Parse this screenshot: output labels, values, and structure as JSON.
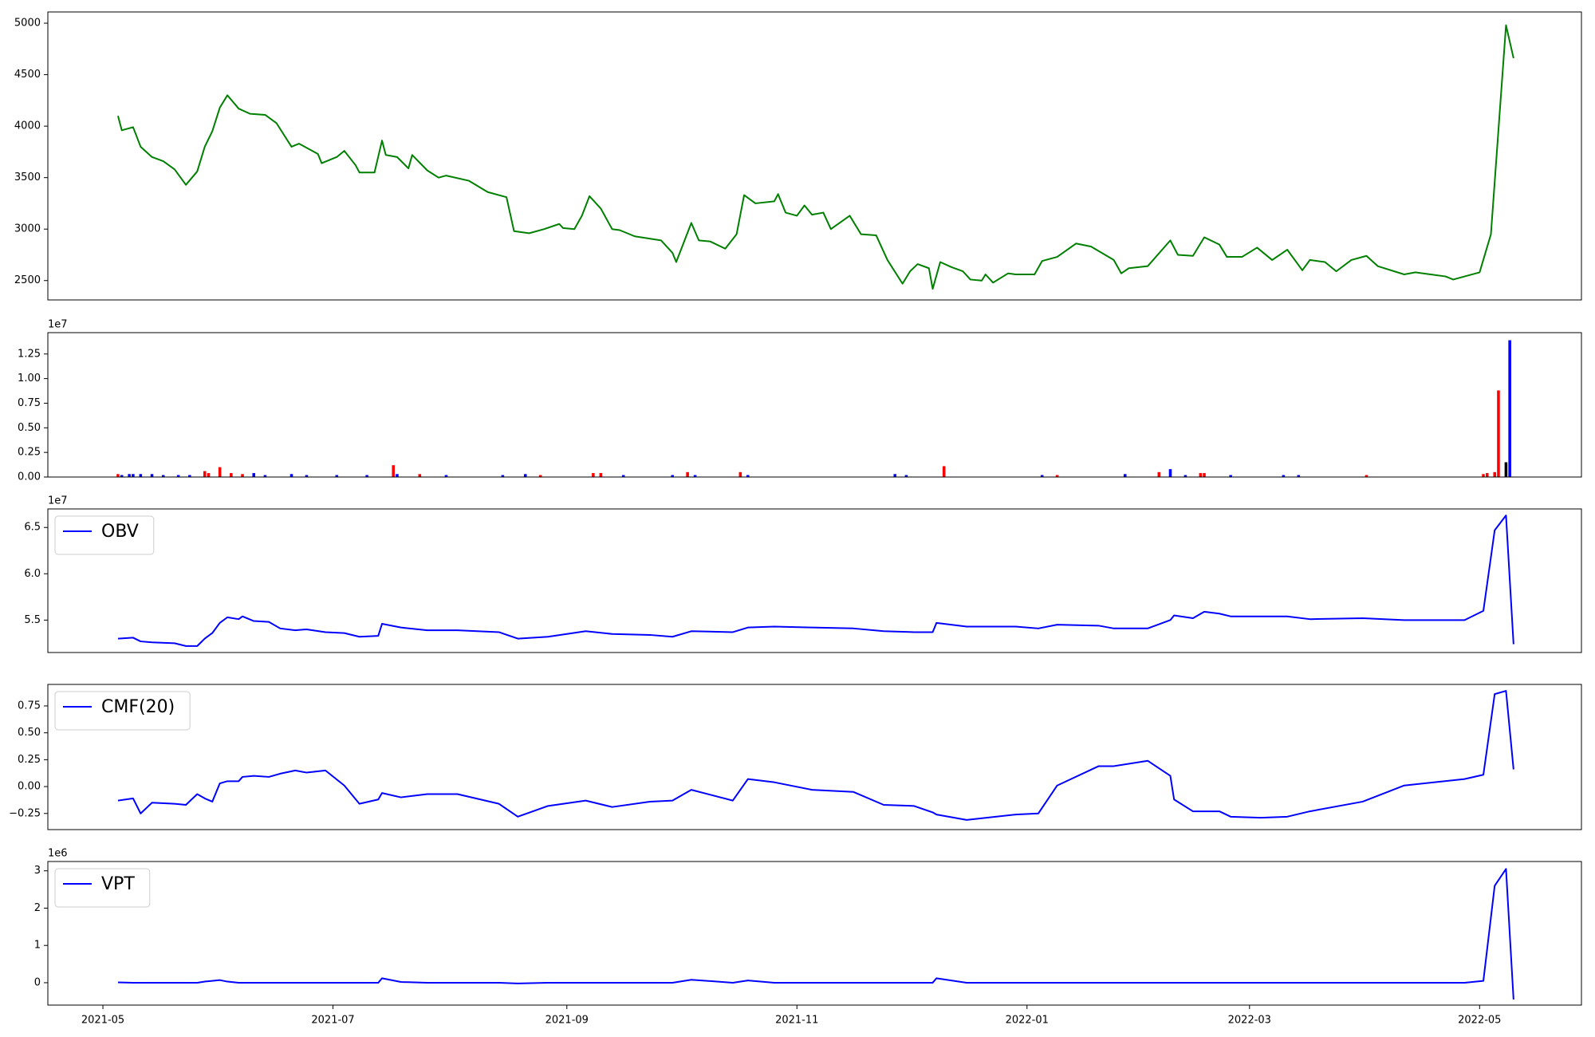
{
  "chart_data": [
    {
      "type": "line",
      "color": "#008000",
      "x": [
        4,
        5,
        8,
        10,
        13,
        16,
        19,
        22,
        25,
        27,
        29,
        31,
        33,
        36,
        39,
        43,
        46,
        50,
        52,
        57,
        58,
        62,
        64,
        67,
        68,
        72,
        74,
        75,
        78,
        81,
        82,
        86,
        89,
        91,
        97,
        102,
        107,
        109,
        113,
        117,
        121,
        122,
        125,
        127,
        129,
        132,
        135,
        137,
        141,
        148,
        151,
        152,
        156,
        158,
        161,
        165,
        168,
        170,
        173,
        178,
        179,
        181,
        184,
        186,
        188,
        191,
        193,
        198,
        201,
        205,
        208,
        212,
        214,
        216,
        219,
        220,
        222,
        225,
        228,
        230,
        233,
        234,
        236,
        240,
        242,
        247,
        249,
        253,
        258,
        262,
        268,
        270,
        272,
        277,
        283,
        285,
        289,
        292,
        296,
        298,
        302,
        306,
        310,
        314,
        318,
        320,
        324,
        327,
        331,
        335,
        338,
        345,
        348,
        352,
        356,
        358,
        361,
        365,
        368,
        372,
        374
      ],
      "values": [
        4100,
        3960,
        3990,
        3800,
        3700,
        3660,
        3580,
        3430,
        3560,
        3800,
        3950,
        4180,
        4300,
        4170,
        4120,
        4110,
        4030,
        3800,
        3830,
        3730,
        3640,
        3700,
        3760,
        3620,
        3550,
        3550,
        3860,
        3720,
        3700,
        3590,
        3720,
        3570,
        3500,
        3520,
        3470,
        3360,
        3310,
        2980,
        2960,
        3000,
        3050,
        3010,
        3000,
        3130,
        3320,
        3200,
        3000,
        2990,
        2930,
        2890,
        2770,
        2680,
        3060,
        2890,
        2880,
        2810,
        2950,
        3330,
        3250,
        3270,
        3340,
        3160,
        3130,
        3230,
        3140,
        3160,
        3000,
        3130,
        2950,
        2940,
        2700,
        2470,
        2590,
        2660,
        2620,
        2420,
        2680,
        2630,
        2590,
        2510,
        2500,
        2560,
        2480,
        2570,
        2560,
        2560,
        2690,
        2730,
        2860,
        2830,
        2700,
        2570,
        2620,
        2640,
        2890,
        2750,
        2740,
        2920,
        2850,
        2730,
        2730,
        2820,
        2700,
        2800,
        2600,
        2700,
        2680,
        2590,
        2700,
        2740,
        2640,
        2560,
        2580,
        2560,
        2540,
        2510,
        2540,
        2580,
        2950,
        4980,
        4660
      ],
      "xlim": [
        -14.6,
        392
      ],
      "ylim": [
        2312,
        5109
      ],
      "yticks": [
        2500,
        3000,
        3500,
        4000,
        4500,
        5000
      ]
    },
    {
      "type": "bar",
      "y_offset_label": "1e7",
      "x": [
        4,
        5,
        7,
        8,
        10,
        13,
        16,
        20,
        23,
        27,
        28,
        31,
        34,
        37,
        40,
        43,
        50,
        54,
        62,
        70,
        77,
        78,
        84,
        91,
        106,
        112,
        116,
        130,
        132,
        138,
        151,
        155,
        157,
        169,
        171,
        210,
        213,
        223,
        249,
        253,
        271,
        280,
        283,
        287,
        291,
        292,
        299,
        313,
        317,
        335,
        366,
        367,
        369,
        370,
        372,
        373
      ],
      "values": [
        0.03,
        0.02,
        0.03,
        0.03,
        0.03,
        0.03,
        0.02,
        0.02,
        0.02,
        0.06,
        0.04,
        0.1,
        0.04,
        0.03,
        0.04,
        0.02,
        0.03,
        0.02,
        0.02,
        0.02,
        0.12,
        0.03,
        0.03,
        0.02,
        0.02,
        0.03,
        0.02,
        0.04,
        0.04,
        0.02,
        0.02,
        0.05,
        0.02,
        0.05,
        0.02,
        0.03,
        0.02,
        0.11,
        0.02,
        0.02,
        0.03,
        0.05,
        0.08,
        0.02,
        0.04,
        0.04,
        0.02,
        0.02,
        0.02,
        0.02,
        0.03,
        0.04,
        0.05,
        0.88,
        0.15,
        1.39
      ],
      "colors": [
        "#ff0000",
        "#0000ff",
        "#0000ff",
        "#0000ff",
        "#0000ff",
        "#0000ff",
        "#0000ff",
        "#0000ff",
        "#0000ff",
        "#ff0000",
        "#ff0000",
        "#ff0000",
        "#ff0000",
        "#ff0000",
        "#0000ff",
        "#0000ff",
        "#0000ff",
        "#0000ff",
        "#0000ff",
        "#0000ff",
        "#ff0000",
        "#0000ff",
        "#ff0000",
        "#0000ff",
        "#0000ff",
        "#0000ff",
        "#ff0000",
        "#ff0000",
        "#ff0000",
        "#0000ff",
        "#0000ff",
        "#ff0000",
        "#0000ff",
        "#ff0000",
        "#0000ff",
        "#0000ff",
        "#0000ff",
        "#ff0000",
        "#0000ff",
        "#ff0000",
        "#0000ff",
        "#ff0000",
        "#0000ff",
        "#0000ff",
        "#ff0000",
        "#ff0000",
        "#0000ff",
        "#0000ff",
        "#0000ff",
        "#ff0000",
        "#ff0000",
        "#ff0000",
        "#ff0000",
        "#ff0000",
        "#000000",
        "#0000ff"
      ],
      "xlim": [
        -14.6,
        392
      ],
      "ylim": [
        0,
        1.467
      ],
      "yticks": [
        {
          "value": 0,
          "label": "0.00"
        },
        0.25,
        {
          "value": 0.5,
          "label": "0.50"
        },
        0.75,
        {
          "value": 1,
          "label": "1.00"
        },
        1.25
      ]
    },
    {
      "type": "line",
      "y_offset_label": "1e7",
      "legend": "upper left",
      "x": [
        4,
        8,
        10,
        13,
        19,
        22,
        25,
        27,
        29,
        31,
        33,
        36,
        37,
        40,
        44,
        47,
        51,
        54,
        59,
        64,
        68,
        73,
        74,
        79,
        86,
        94,
        105,
        110,
        118,
        128,
        135,
        145,
        151,
        156,
        167,
        171,
        178,
        188,
        199,
        207,
        215,
        220,
        221,
        229,
        242,
        248,
        253,
        264,
        268,
        277,
        283,
        284,
        289,
        292,
        296,
        299,
        307,
        314,
        320,
        334,
        345,
        361,
        366,
        369,
        372,
        374
      ],
      "series": [
        {
          "name": "OBV",
          "color": "#0000ff",
          "values": [
            5.3,
            5.31,
            5.27,
            5.26,
            5.25,
            5.22,
            5.22,
            5.3,
            5.36,
            5.47,
            5.53,
            5.51,
            5.54,
            5.49,
            5.48,
            5.41,
            5.39,
            5.4,
            5.37,
            5.36,
            5.32,
            5.33,
            5.46,
            5.42,
            5.39,
            5.39,
            5.37,
            5.3,
            5.32,
            5.38,
            5.35,
            5.34,
            5.32,
            5.38,
            5.37,
            5.42,
            5.43,
            5.42,
            5.41,
            5.38,
            5.37,
            5.37,
            5.47,
            5.43,
            5.43,
            5.41,
            5.45,
            5.44,
            5.41,
            5.41,
            5.5,
            5.55,
            5.52,
            5.59,
            5.57,
            5.54,
            5.54,
            5.54,
            5.51,
            5.52,
            5.5,
            5.5,
            5.6,
            6.47,
            6.63,
            5.24
          ]
        }
      ],
      "xlim": [
        -14.6,
        392
      ],
      "ylim": [
        5.15,
        6.7
      ],
      "yticks": [
        5.5,
        {
          "value": 6,
          "label": "6.0"
        },
        6.5
      ]
    },
    {
      "type": "line",
      "legend": "upper left",
      "x": [
        4,
        8,
        10,
        13,
        19,
        22,
        25,
        27,
        29,
        31,
        33,
        36,
        37,
        40,
        44,
        47,
        51,
        54,
        59,
        64,
        68,
        73,
        74,
        79,
        86,
        94,
        105,
        110,
        118,
        128,
        135,
        145,
        151,
        156,
        167,
        171,
        178,
        188,
        199,
        207,
        215,
        220,
        221,
        229,
        242,
        248,
        253,
        264,
        268,
        277,
        283,
        284,
        289,
        292,
        296,
        299,
        307,
        314,
        320,
        334,
        345,
        361,
        366,
        369,
        372,
        374
      ],
      "series": [
        {
          "name": "CMF(20)",
          "color": "#0000ff",
          "values": [
            -0.13,
            -0.11,
            -0.25,
            -0.15,
            -0.16,
            -0.17,
            -0.07,
            -0.11,
            -0.14,
            0.03,
            0.05,
            0.05,
            0.09,
            0.1,
            0.09,
            0.12,
            0.15,
            0.13,
            0.15,
            0.01,
            -0.16,
            -0.12,
            -0.06,
            -0.1,
            -0.07,
            -0.07,
            -0.16,
            -0.28,
            -0.18,
            -0.13,
            -0.19,
            -0.14,
            -0.13,
            -0.03,
            -0.13,
            0.07,
            0.04,
            -0.03,
            -0.05,
            -0.17,
            -0.18,
            -0.24,
            -0.26,
            -0.31,
            -0.26,
            -0.25,
            0.01,
            0.19,
            0.19,
            0.24,
            0.1,
            -0.12,
            -0.23,
            -0.23,
            -0.23,
            -0.28,
            -0.29,
            -0.28,
            -0.23,
            -0.14,
            0.01,
            0.07,
            0.11,
            0.86,
            0.89,
            0.16
          ]
        }
      ],
      "xlim": [
        -14.6,
        392
      ],
      "ylim": [
        -0.4,
        0.95
      ],
      "yticks": [
        {
          "value": -0.25,
          "label": "−0.25"
        },
        {
          "value": 0,
          "label": "0.00"
        },
        0.25,
        {
          "value": 0.5,
          "label": "0.50"
        },
        0.75
      ]
    },
    {
      "type": "line",
      "y_offset_label": "1e6",
      "legend": "upper left",
      "x": [
        4,
        8,
        10,
        13,
        19,
        22,
        25,
        27,
        29,
        31,
        33,
        36,
        37,
        40,
        44,
        47,
        51,
        54,
        59,
        64,
        68,
        73,
        74,
        79,
        86,
        94,
        105,
        110,
        118,
        128,
        135,
        145,
        151,
        156,
        167,
        171,
        178,
        188,
        199,
        207,
        215,
        220,
        221,
        229,
        242,
        248,
        253,
        264,
        268,
        277,
        283,
        284,
        289,
        292,
        296,
        299,
        307,
        314,
        320,
        334,
        345,
        361,
        366,
        369,
        372,
        374
      ],
      "series": [
        {
          "name": "VPT",
          "color": "#0000ff",
          "values": [
            0.01,
            0,
            0,
            0,
            0,
            0,
            0,
            0.03,
            0.05,
            0.07,
            0.03,
            0,
            0,
            0,
            0,
            0,
            0,
            0,
            0,
            0,
            0,
            0,
            0.12,
            0.02,
            0,
            0,
            0,
            -0.02,
            0,
            0,
            0,
            0,
            0,
            0.08,
            0,
            0.06,
            0,
            0,
            0,
            0,
            0,
            0,
            0.12,
            0,
            0,
            0,
            0,
            0,
            0,
            0,
            0,
            0,
            0,
            0,
            0,
            0,
            0,
            0,
            0,
            0,
            0,
            0,
            0.05,
            2.6,
            3.05,
            -0.45
          ]
        }
      ],
      "xlim": [
        -14.6,
        392
      ],
      "ylim": [
        -0.6,
        3.25
      ],
      "yticks": [
        0,
        1,
        2,
        3
      ],
      "xticks": [
        {
          "value": 0,
          "label": "2021-05"
        },
        {
          "value": 61,
          "label": "2021-07"
        },
        {
          "value": 123,
          "label": "2021-09"
        },
        {
          "value": 184,
          "label": "2021-11"
        },
        {
          "value": 245,
          "label": "2022-01"
        },
        {
          "value": 304,
          "label": "2022-03"
        },
        {
          "value": 365,
          "label": "2022-05"
        }
      ]
    }
  ]
}
